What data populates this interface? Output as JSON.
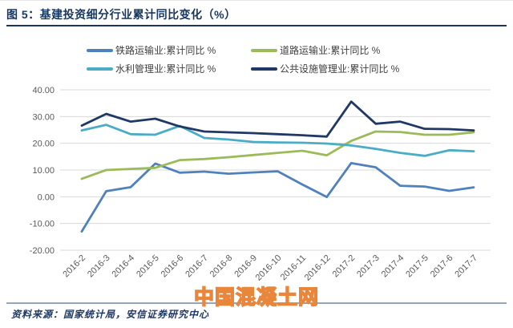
{
  "figure": {
    "title": "图 5：基建投资细分行业累计同比变化（%）",
    "source_note": "资料来源：国家统计局，安信证券研究中心",
    "watermark": "中国混凝土网"
  },
  "colors": {
    "title_navy": "#17375e",
    "rule_navy": "#17375e",
    "footer_rule_blue": "#95a5bd",
    "watermark_orange": "#e8863b",
    "gridline_gray": "#d9d9d9",
    "axis_text_gray": "#595959",
    "legend_text": "#3f3f3f"
  },
  "chart_data": {
    "type": "line",
    "title": "基建投资细分行业累计同比变化（%）",
    "xlabel": "",
    "ylabel": "",
    "ylim": [
      -20,
      40
    ],
    "yticks": [
      40,
      30,
      20,
      10,
      0,
      -10,
      -20
    ],
    "ytick_labels": [
      "40.00",
      "30.00",
      "20.00",
      "10.00",
      "0.00",
      "-10.00",
      "-20.00"
    ],
    "grid": "horizontal",
    "legend_position": "top",
    "categories": [
      "2016-2",
      "2016-3",
      "2016-4",
      "2016-5",
      "2016-6",
      "2016-7",
      "2016-8",
      "2016-9",
      "2016-10",
      "2016-11",
      "2016-12",
      "2017-2",
      "2017-3",
      "2017-4",
      "2017-5",
      "2017-6",
      "2017-7"
    ],
    "series": [
      {
        "name": "铁路运输业:累计同比 %",
        "color": "#4f81bd",
        "values": [
          -13.0,
          2.1,
          3.6,
          12.4,
          9.0,
          9.4,
          8.6,
          9.1,
          9.5,
          4.6,
          -0.1,
          12.6,
          11.0,
          4.1,
          3.8,
          2.2,
          3.5
        ]
      },
      {
        "name": "道路运输业:累计同比 %",
        "color": "#9bbb59",
        "values": [
          6.7,
          10.0,
          10.4,
          10.8,
          13.7,
          14.1,
          14.8,
          15.6,
          16.4,
          17.2,
          15.5,
          20.9,
          24.4,
          24.2,
          23.2,
          23.2,
          24.1
        ]
      },
      {
        "name": "水利管理业:累计同比 %",
        "color": "#4bacc6",
        "values": [
          24.8,
          26.9,
          23.4,
          23.2,
          26.5,
          22.0,
          21.4,
          20.5,
          20.3,
          20.2,
          19.9,
          19.2,
          17.9,
          16.4,
          15.3,
          17.4,
          17.0
        ]
      },
      {
        "name": "公共设施管理业:累计同比 %",
        "color": "#1f3864",
        "values": [
          26.6,
          31.0,
          28.1,
          29.2,
          26.3,
          24.4,
          24.1,
          23.8,
          23.4,
          23.0,
          22.5,
          35.6,
          27.3,
          28.1,
          25.4,
          25.3,
          24.8
        ]
      }
    ]
  }
}
